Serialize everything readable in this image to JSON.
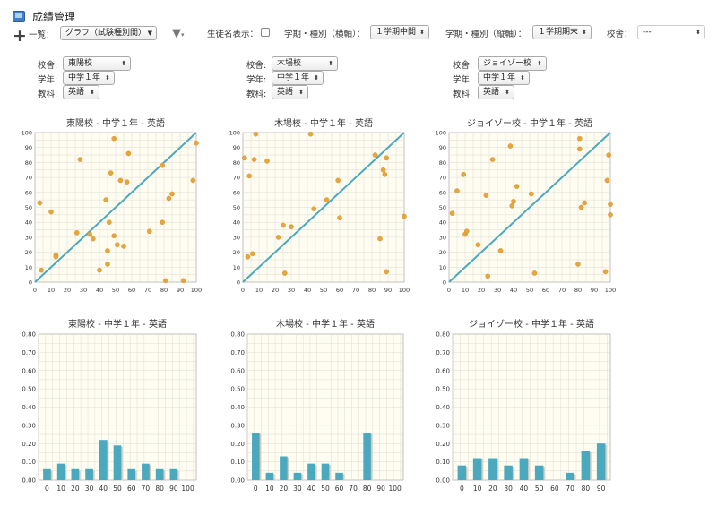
{
  "app": {
    "title": "成績管理"
  },
  "toolbar": {
    "list_label": "一覧：",
    "list_value": "グラフ（試験種別間）",
    "student_name_label": "生徒名表示：",
    "term_x_label": "学期・種別（横軸）：",
    "term_x_value": "１学期中間",
    "term_y_label": "学期・種別（縦軸）：",
    "term_y_value": "１学期期末",
    "school_label": "校舎：",
    "school_value": "---"
  },
  "filters": [
    {
      "school_label": "校舎:",
      "school": "東陽校",
      "grade_label": "学年:",
      "grade": "中学１年",
      "subject_label": "教科:",
      "subject": "英語"
    },
    {
      "school_label": "校舎:",
      "school": "木場校",
      "grade_label": "学年:",
      "grade": "中学１年",
      "subject_label": "教科:",
      "subject": "英語"
    },
    {
      "school_label": "校舎:",
      "school": "ジョイゾー校",
      "grade_label": "学年:",
      "grade": "中学１年",
      "subject_label": "教科:",
      "subject": "英語"
    }
  ],
  "colors": {
    "point": "#e8a63a",
    "diagonal": "#4aa8bf",
    "bar": "#4aa8bf",
    "plot_bg": "#fffdf1",
    "grid": "#dedbd0"
  },
  "chart_data": [
    {
      "type": "scatter",
      "title": "東陽校 - 中学１年 - 英語",
      "xlim": [
        0,
        100
      ],
      "ylim": [
        0,
        100
      ],
      "xticks": [
        "0",
        "10",
        "20",
        "30",
        "40",
        "50",
        "60",
        "70",
        "80",
        "90",
        "100"
      ],
      "yticks": [
        "0",
        "10",
        "20",
        "30",
        "40",
        "50",
        "60",
        "70",
        "80",
        "90",
        "100"
      ],
      "diagonal": true,
      "points": [
        [
          3,
          53
        ],
        [
          4,
          8
        ],
        [
          10,
          47
        ],
        [
          13,
          18
        ],
        [
          13,
          17
        ],
        [
          26,
          33
        ],
        [
          28,
          82
        ],
        [
          34,
          32
        ],
        [
          36,
          29
        ],
        [
          40,
          8
        ],
        [
          44,
          55
        ],
        [
          45,
          12
        ],
        [
          45,
          21
        ],
        [
          46,
          40
        ],
        [
          47,
          73
        ],
        [
          49,
          96
        ],
        [
          49,
          31
        ],
        [
          51,
          25
        ],
        [
          53,
          68
        ],
        [
          55,
          24
        ],
        [
          57,
          67
        ],
        [
          58,
          86
        ],
        [
          71,
          34
        ],
        [
          79,
          78
        ],
        [
          79,
          40
        ],
        [
          81,
          1
        ],
        [
          83,
          56
        ],
        [
          85,
          59
        ],
        [
          92,
          1
        ],
        [
          98,
          68
        ],
        [
          100,
          93
        ]
      ]
    },
    {
      "type": "scatter",
      "title": "木場校 - 中学１年 - 英語",
      "xlim": [
        0,
        100
      ],
      "ylim": [
        0,
        100
      ],
      "xticks": [
        "0",
        "10",
        "20",
        "30",
        "40",
        "50",
        "60",
        "70",
        "80",
        "90",
        "100"
      ],
      "yticks": [
        "0",
        "10",
        "20",
        "30",
        "40",
        "50",
        "60",
        "70",
        "80",
        "90",
        "100"
      ],
      "diagonal": true,
      "points": [
        [
          1,
          83
        ],
        [
          3,
          17
        ],
        [
          4,
          71
        ],
        [
          6,
          19
        ],
        [
          7,
          82
        ],
        [
          8,
          99
        ],
        [
          15,
          81
        ],
        [
          22,
          30
        ],
        [
          25,
          38
        ],
        [
          26,
          6
        ],
        [
          30,
          37
        ],
        [
          42,
          99
        ],
        [
          44,
          49
        ],
        [
          52,
          55
        ],
        [
          59,
          68
        ],
        [
          60,
          43
        ],
        [
          82,
          85
        ],
        [
          85,
          29
        ],
        [
          87,
          75
        ],
        [
          88,
          72
        ],
        [
          89,
          83
        ],
        [
          89,
          7
        ],
        [
          100,
          44
        ]
      ]
    },
    {
      "type": "scatter",
      "title": "ジョイゾー校 - 中学１年 - 英語",
      "xlim": [
        0,
        100
      ],
      "ylim": [
        0,
        100
      ],
      "xticks": [
        "0",
        "10",
        "20",
        "30",
        "40",
        "50",
        "60",
        "70",
        "80",
        "90",
        "100"
      ],
      "yticks": [
        "0",
        "10",
        "20",
        "30",
        "40",
        "50",
        "60",
        "70",
        "80",
        "90",
        "100"
      ],
      "diagonal": true,
      "points": [
        [
          2,
          46
        ],
        [
          5,
          61
        ],
        [
          9,
          72
        ],
        [
          10,
          32
        ],
        [
          11,
          34
        ],
        [
          18,
          25
        ],
        [
          23,
          58
        ],
        [
          24,
          4
        ],
        [
          27,
          82
        ],
        [
          32,
          21
        ],
        [
          38,
          91
        ],
        [
          39,
          51
        ],
        [
          40,
          54
        ],
        [
          42,
          64
        ],
        [
          51,
          59
        ],
        [
          53,
          6
        ],
        [
          80,
          12
        ],
        [
          81,
          96
        ],
        [
          81,
          89
        ],
        [
          82,
          50
        ],
        [
          84,
          53
        ],
        [
          97,
          7
        ],
        [
          98,
          68
        ],
        [
          99,
          85
        ],
        [
          100,
          52
        ],
        [
          100,
          45
        ]
      ]
    },
    {
      "type": "bar",
      "title": "東陽校 - 中学１年 - 英語",
      "categories": [
        "0",
        "10",
        "20",
        "30",
        "40",
        "50",
        "60",
        "70",
        "80",
        "90",
        "100"
      ],
      "values": [
        0.06,
        0.09,
        0.06,
        0.06,
        0.22,
        0.19,
        0.06,
        0.09,
        0.06,
        0.06,
        0
      ],
      "ylim": [
        0,
        0.8
      ],
      "yticks": [
        "0.00",
        "0.10",
        "0.20",
        "0.30",
        "0.40",
        "0.50",
        "0.60",
        "0.70",
        "0.80"
      ]
    },
    {
      "type": "bar",
      "title": "木場校 - 中学１年 - 英語",
      "categories": [
        "0",
        "10",
        "20",
        "30",
        "40",
        "50",
        "60",
        "70",
        "80",
        "90",
        "100"
      ],
      "values": [
        0.26,
        0.04,
        0.13,
        0.04,
        0.09,
        0.09,
        0.04,
        0,
        0.26,
        0,
        0
      ],
      "ylim": [
        0,
        0.8
      ],
      "yticks": [
        "0.00",
        "0.10",
        "0.20",
        "0.30",
        "0.40",
        "0.50",
        "0.60",
        "0.70",
        "0.80"
      ]
    },
    {
      "type": "bar",
      "title": "ジョイゾー校 - 中学１年 - 英語",
      "categories": [
        "0",
        "10",
        "20",
        "30",
        "40",
        "50",
        "60",
        "70",
        "80",
        "90"
      ],
      "values": [
        0.08,
        0.12,
        0.12,
        0.08,
        0.12,
        0.08,
        0,
        0.04,
        0.16,
        0.2
      ],
      "ylim": [
        0,
        0.8
      ],
      "yticks": [
        "0.00",
        "0.10",
        "0.20",
        "0.30",
        "0.40",
        "0.50",
        "0.60",
        "0.70",
        "0.80"
      ]
    }
  ]
}
